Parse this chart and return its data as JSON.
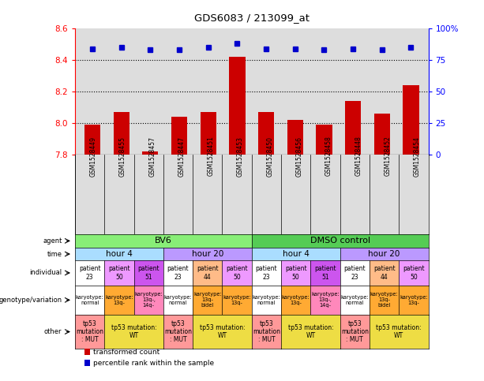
{
  "title": "GDS6083 / 213099_at",
  "samples": [
    "GSM1528449",
    "GSM1528455",
    "GSM1528457",
    "GSM1528447",
    "GSM1528451",
    "GSM1528453",
    "GSM1528450",
    "GSM1528456",
    "GSM1528458",
    "GSM1528448",
    "GSM1528452",
    "GSM1528454"
  ],
  "bar_values": [
    7.99,
    8.07,
    7.82,
    8.04,
    8.07,
    8.42,
    8.07,
    8.02,
    7.99,
    8.14,
    8.06,
    8.24
  ],
  "dot_values": [
    84,
    85,
    83,
    83,
    85,
    88,
    84,
    84,
    83,
    84,
    83,
    85
  ],
  "ylim_left": [
    7.8,
    8.6
  ],
  "ylim_right": [
    0,
    100
  ],
  "yticks_left": [
    7.8,
    8.0,
    8.2,
    8.4,
    8.6
  ],
  "yticks_right": [
    0,
    25,
    50,
    75,
    100
  ],
  "ytick_labels_right": [
    "0",
    "25",
    "50",
    "75",
    "100%"
  ],
  "bar_color": "#cc0000",
  "dot_color": "#0000cc",
  "bar_bottom": 7.8,
  "chart_bg": "#dddddd",
  "agent_cells": [
    {
      "text": "BV6",
      "c0": 0,
      "c1": 5,
      "color": "#88ee77"
    },
    {
      "text": "DMSO control",
      "c0": 6,
      "c1": 11,
      "color": "#55cc55"
    }
  ],
  "time_cells": [
    {
      "text": "hour 4",
      "c0": 0,
      "c1": 2,
      "color": "#aaddff"
    },
    {
      "text": "hour 20",
      "c0": 3,
      "c1": 5,
      "color": "#bb99ff"
    },
    {
      "text": "hour 4",
      "c0": 6,
      "c1": 8,
      "color": "#aaddff"
    },
    {
      "text": "hour 20",
      "c0": 9,
      "c1": 11,
      "color": "#bb99ff"
    }
  ],
  "individual_texts": [
    "patient\n23",
    "patient\n50",
    "patient\n51",
    "patient\n23",
    "patient\n44",
    "patient\n50",
    "patient\n23",
    "patient\n50",
    "patient\n51",
    "patient\n23",
    "patient\n44",
    "patient\n50"
  ],
  "individual_colors": [
    "#ffffff",
    "#ee99ff",
    "#cc55ee",
    "#ffffff",
    "#ffbb88",
    "#ee99ff",
    "#ffffff",
    "#ee99ff",
    "#cc55ee",
    "#ffffff",
    "#ffbb88",
    "#ee99ff"
  ],
  "genotype_texts": [
    "karyotype:\nnormal",
    "karyotype:\n13q-",
    "karyotype:\n13q-,\n14q-",
    "karyotype:\nnormal",
    "karyotype:\n13q-\nbidel",
    "karyotype:\n13q-",
    "karyotype:\nnormal",
    "karyotype:\n13q-",
    "karyotype:\n13q-,\n14q-",
    "karyotype:\nnormal",
    "karyotype:\n13q-\nbidel",
    "karyotype:\n13q-"
  ],
  "genotype_colors": [
    "#ffffff",
    "#ffaa33",
    "#ff88bb",
    "#ffffff",
    "#ffaa33",
    "#ffaa33",
    "#ffffff",
    "#ffaa33",
    "#ff88bb",
    "#ffffff",
    "#ffaa33",
    "#ffaa33"
  ],
  "other_cells": [
    {
      "text": "tp53\nmutation\n: MUT",
      "c0": 0,
      "c1": 0,
      "color": "#ff9999"
    },
    {
      "text": "tp53 mutation:\nWT",
      "c0": 1,
      "c1": 2,
      "color": "#eedd44"
    },
    {
      "text": "tp53\nmutation\n: MUT",
      "c0": 3,
      "c1": 3,
      "color": "#ff9999"
    },
    {
      "text": "tp53 mutation:\nWT",
      "c0": 4,
      "c1": 5,
      "color": "#eedd44"
    },
    {
      "text": "tp53\nmutation\n: MUT",
      "c0": 6,
      "c1": 6,
      "color": "#ff9999"
    },
    {
      "text": "tp53 mutation:\nWT",
      "c0": 7,
      "c1": 8,
      "color": "#eedd44"
    },
    {
      "text": "tp53\nmutation\n: MUT",
      "c0": 9,
      "c1": 9,
      "color": "#ff9999"
    },
    {
      "text": "tp53 mutation:\nWT",
      "c0": 10,
      "c1": 11,
      "color": "#eedd44"
    }
  ],
  "row_labels": [
    "agent",
    "time",
    "individual",
    "genotype/variation",
    "other"
  ],
  "legend_items": [
    {
      "label": "transformed count",
      "color": "#cc0000"
    },
    {
      "label": "percentile rank within the sample",
      "color": "#0000cc"
    }
  ]
}
